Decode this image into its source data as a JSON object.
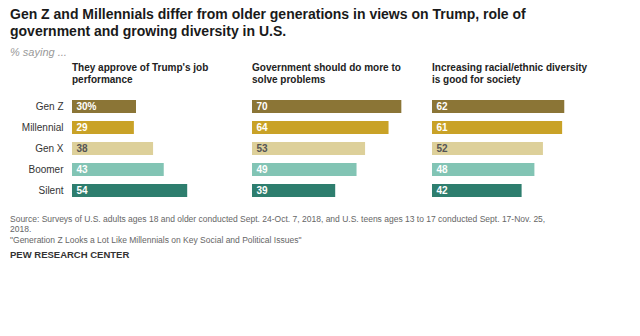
{
  "title": "Gen Z and Millennials differ from older generations in views on Trump, role of\ngovernment and growing diversity in U.S.",
  "subtitle": "% saying ...",
  "annotations": [
    "Source: Surveys of U.S. adults ages 18 and older conducted Sept. 24-Oct. 7, 2018, and U.S. teens ages 13 to 17 conducted Sept. 17-Nov. 25,\n2018.\n\"Generation Z Looks a Lot Like Millennials on Key Social and Political Issues\"",
    "PEW RESEARCH CENTER"
  ],
  "chart_data": [
    {
      "type": "bar",
      "orientation": "horizontal",
      "title": "They approve of Trump's job\nperformance",
      "categories": [
        "Gen Z",
        "Millennial",
        "Gen X",
        "Boomer",
        "Silent"
      ],
      "values": [
        30,
        29,
        38,
        43,
        54
      ],
      "value_labels": [
        "30%",
        "29",
        "38",
        "43",
        "54"
      ],
      "colors": [
        "#8B7536",
        "#C9A227",
        "#DDD09A",
        "#82C4B4",
        "#2E7E6E"
      ],
      "xlim": [
        0,
        75
      ],
      "data_labels": true,
      "tick_labels": "y"
    },
    {
      "type": "bar",
      "orientation": "horizontal",
      "title": "Government should do more to\nsolve problems",
      "categories": [
        "Gen Z",
        "Millennial",
        "Gen X",
        "Boomer",
        "Silent"
      ],
      "values": [
        70,
        64,
        53,
        49,
        39
      ],
      "colors": [
        "#8B7536",
        "#C9A227",
        "#DDD09A",
        "#82C4B4",
        "#2E7E6E"
      ],
      "xlim": [
        0,
        75
      ],
      "data_labels": true,
      "tick_labels": false
    },
    {
      "type": "bar",
      "orientation": "horizontal",
      "title": "Increasing racial/ethnic diversity\nis good for society",
      "categories": [
        "Gen Z",
        "Millennial",
        "Gen X",
        "Boomer",
        "Silent"
      ],
      "values": [
        62,
        61,
        52,
        48,
        42
      ],
      "colors": [
        "#8B7536",
        "#C9A227",
        "#DDD09A",
        "#82C4B4",
        "#2E7E6E"
      ],
      "xlim": [
        0,
        75
      ],
      "data_labels": true,
      "tick_labels": false
    }
  ]
}
